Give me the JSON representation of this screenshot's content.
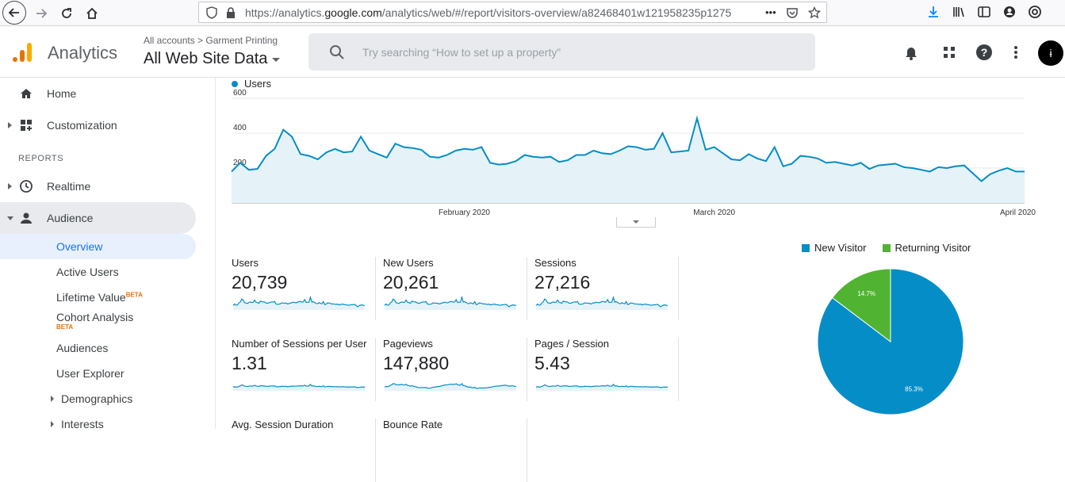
{
  "browser": {
    "url_prefix": "https://analytics.",
    "url_domain": "google.com",
    "url_path": "/analytics/web/#/report/visitors-overview/a82468401w121958235p1275",
    "more_label": "•••"
  },
  "header": {
    "product": "Analytics",
    "breadcrumb_all": "All accounts",
    "breadcrumb_sep": ">",
    "breadcrumb_account": "Garment Printing",
    "view_name": "All Web Site Data",
    "search_placeholder": "Try searching “How to set up a property”",
    "avatar_letter": "ɨ"
  },
  "sidebar": {
    "home": "Home",
    "customization": "Customization",
    "section_reports": "REPORTS",
    "realtime": "Realtime",
    "audience": "Audience",
    "sub": {
      "overview": "Overview",
      "active_users": "Active Users",
      "lifetime_value": "Lifetime Value",
      "cohort_analysis": "Cohort Analysis",
      "beta": "BETA",
      "audiences": "Audiences",
      "user_explorer": "User Explorer",
      "demographics": "Demographics",
      "interests": "Interests"
    }
  },
  "main_chart": {
    "legend": "Users",
    "color": "#058dc7",
    "y_ticks": [
      "600",
      "400",
      "200"
    ],
    "ylim": [
      0,
      600
    ],
    "x_labels": [
      {
        "label": "February 2020",
        "index": 27
      },
      {
        "label": "March 2020",
        "index": 56
      },
      {
        "label": "April 2020",
        "index": 90
      }
    ],
    "values": [
      180,
      230,
      190,
      195,
      270,
      310,
      420,
      380,
      280,
      270,
      250,
      290,
      310,
      290,
      295,
      380,
      300,
      280,
      260,
      340,
      320,
      315,
      305,
      265,
      260,
      275,
      300,
      310,
      305,
      320,
      230,
      220,
      225,
      240,
      275,
      265,
      260,
      265,
      235,
      245,
      275,
      275,
      300,
      285,
      280,
      300,
      325,
      320,
      305,
      310,
      400,
      290,
      295,
      300,
      485,
      305,
      320,
      285,
      250,
      245,
      280,
      255,
      240,
      320,
      210,
      225,
      270,
      265,
      255,
      230,
      235,
      225,
      215,
      230,
      195,
      215,
      220,
      225,
      205,
      200,
      190,
      180,
      205,
      200,
      210,
      215,
      170,
      125,
      165,
      185,
      200,
      180,
      180
    ]
  },
  "metrics": [
    {
      "label": "Users",
      "value": "20,739"
    },
    {
      "label": "New Users",
      "value": "20,261"
    },
    {
      "label": "Sessions",
      "value": "27,216"
    },
    {
      "label": "Number of Sessions per User",
      "value": "1.31"
    },
    {
      "label": "Pageviews",
      "value": "147,880"
    },
    {
      "label": "Pages / Session",
      "value": "5.43"
    },
    {
      "label": "Avg. Session Duration",
      "value": ""
    },
    {
      "label": "Bounce Rate",
      "value": ""
    }
  ],
  "chart_data": {
    "type": "pie",
    "labels": [
      "New Visitor",
      "Returning Visitor"
    ],
    "values": [
      85.3,
      14.7
    ],
    "value_labels": [
      "85.3%",
      "14.7%"
    ],
    "colors": [
      "#058dc7",
      "#50b432"
    ],
    "legend_position": "top"
  }
}
